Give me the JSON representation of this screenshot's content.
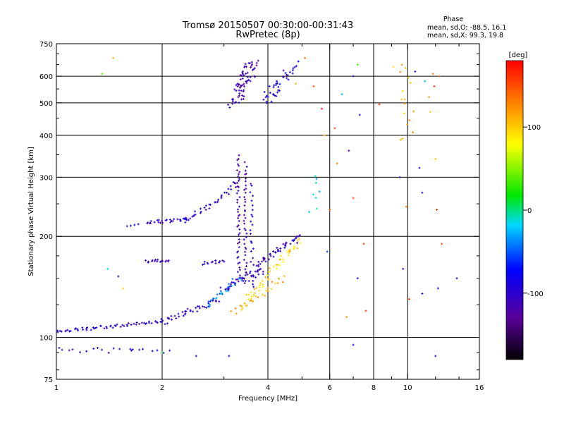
{
  "header": {
    "title_line1": "Tromsø 20150507 00:30:00-00:31:43",
    "title_line2": "RwPretec (8p)"
  },
  "stats": {
    "heading": "Phase",
    "line_o": "mean, sd,O: -88.5, 16.1",
    "line_x": "mean, sd,X:  99.3, 19.8"
  },
  "colorbar": {
    "label": "[deg]",
    "range": [
      -180,
      180
    ],
    "ticks": [
      {
        "value": 100,
        "label": "100"
      },
      {
        "value": 0,
        "label": "0"
      },
      {
        "value": -100,
        "label": "-100"
      }
    ]
  },
  "chart_data": {
    "type": "scatter",
    "title": "Tromsø 20150507 00:30:00-00:31:43",
    "subtitle": "RwPretec (8p)",
    "xlabel": "Frequency [MHz]",
    "ylabel": "Stationary phase Virtual Height [km]",
    "xscale": "log",
    "yscale": "log",
    "xlim": [
      1,
      16
    ],
    "ylim": [
      75,
      750
    ],
    "xticks": [
      {
        "value": 1,
        "label": "1"
      },
      {
        "value": 2,
        "label": "2"
      },
      {
        "value": 4,
        "label": "4"
      },
      {
        "value": 6,
        "label": "6"
      },
      {
        "value": 8,
        "label": "8"
      },
      {
        "value": 10,
        "label": "10"
      },
      {
        "value": 16,
        "label": "16"
      }
    ],
    "yticks": [
      {
        "value": 75,
        "label": "75"
      },
      {
        "value": 100,
        "label": "100"
      },
      {
        "value": 200,
        "label": "200"
      },
      {
        "value": 300,
        "label": "300"
      },
      {
        "value": 400,
        "label": "400"
      },
      {
        "value": 500,
        "label": "500"
      },
      {
        "value": 600,
        "label": "600"
      },
      {
        "value": 750,
        "label": "750"
      }
    ],
    "grid_x": [
      2,
      4,
      6,
      8,
      10
    ],
    "grid_y": [
      100,
      200,
      300,
      400,
      500,
      600
    ],
    "color_by": "phase [deg]",
    "segments": [
      {
        "f0": 1.0,
        "h0": 104,
        "f1": 1.95,
        "h1": 111,
        "n": 55,
        "phase": -100,
        "spread": 0.012
      },
      {
        "f0": 1.95,
        "h0": 110,
        "f1": 2.85,
        "h1": 128,
        "n": 40,
        "phase": -95,
        "spread": 0.02
      },
      {
        "f0": 2.7,
        "h0": 125,
        "f1": 3.35,
        "h1": 150,
        "n": 30,
        "phase": -40,
        "spread": 0.025
      },
      {
        "f0": 3.0,
        "h0": 140,
        "f1": 3.9,
        "h1": 160,
        "n": 35,
        "phase": -105,
        "spread": 0.025
      },
      {
        "f0": 3.7,
        "h0": 165,
        "f1": 4.95,
        "h1": 200,
        "n": 45,
        "phase": -110,
        "spread": 0.02
      },
      {
        "f0": 3.4,
        "h0": 125,
        "f1": 4.9,
        "h1": 195,
        "n": 50,
        "phase": 95,
        "spread": 0.025
      },
      {
        "f0": 3.2,
        "h0": 118,
        "f1": 4.4,
        "h1": 150,
        "n": 25,
        "phase": 110,
        "spread": 0.02
      },
      {
        "f0": 3.3,
        "h0": 150,
        "f1": 3.3,
        "h1": 350,
        "n": 45,
        "phase": -115,
        "spread": 0.01
      },
      {
        "f0": 3.45,
        "h0": 145,
        "f1": 3.45,
        "h1": 330,
        "n": 40,
        "phase": -120,
        "spread": 0.01
      },
      {
        "f0": 3.6,
        "h0": 140,
        "f1": 3.6,
        "h1": 290,
        "n": 25,
        "phase": -100,
        "spread": 0.012
      },
      {
        "f0": 2.9,
        "h0": 255,
        "f1": 3.3,
        "h1": 295,
        "n": 15,
        "phase": -100,
        "spread": 0.02
      },
      {
        "f0": 1.8,
        "h0": 220,
        "f1": 2.4,
        "h1": 225,
        "n": 28,
        "phase": -100,
        "spread": 0.012
      },
      {
        "f0": 2.3,
        "h0": 222,
        "f1": 2.9,
        "h1": 255,
        "n": 22,
        "phase": -100,
        "spread": 0.015
      },
      {
        "f0": 1.6,
        "h0": 215,
        "f1": 1.7,
        "h1": 216,
        "n": 4,
        "phase": -100,
        "spread": 0.01
      },
      {
        "f0": 1.8,
        "h0": 168,
        "f1": 2.1,
        "h1": 170,
        "n": 16,
        "phase": -105,
        "spread": 0.01
      },
      {
        "f0": 2.6,
        "h0": 166,
        "f1": 3.0,
        "h1": 170,
        "n": 14,
        "phase": -100,
        "spread": 0.012
      },
      {
        "f0": 1.0,
        "h0": 92,
        "f1": 2.1,
        "h1": 91,
        "n": 20,
        "phase": -100,
        "spread": 0.02
      },
      {
        "f0": 3.2,
        "h0": 500,
        "f1": 3.65,
        "h1": 660,
        "n": 70,
        "phase": -110,
        "spread": 0.04
      },
      {
        "f0": 3.9,
        "h0": 500,
        "f1": 4.7,
        "h1": 640,
        "n": 40,
        "phase": -90,
        "spread": 0.04
      },
      {
        "f0": 5.3,
        "h0": 240,
        "f1": 5.6,
        "h1": 300,
        "n": 8,
        "phase": -20,
        "spread": 0.03
      },
      {
        "f0": 10.0,
        "h0": 380,
        "f1": 10.0,
        "h1": 660,
        "n": 16,
        "phase": 110,
        "spread": 0.05
      }
    ],
    "scatter": [
      {
        "x": 1.35,
        "y": 610,
        "phase": 40
      },
      {
        "x": 1.45,
        "y": 680,
        "phase": 110
      },
      {
        "x": 1.5,
        "y": 152,
        "phase": -100
      },
      {
        "x": 1.55,
        "y": 140,
        "phase": 100
      },
      {
        "x": 1.4,
        "y": 160,
        "phase": -20
      },
      {
        "x": 1.65,
        "y": 92,
        "phase": -100
      },
      {
        "x": 2.0,
        "y": 90,
        "phase": 30
      },
      {
        "x": 2.5,
        "y": 88,
        "phase": -100
      },
      {
        "x": 3.1,
        "y": 88,
        "phase": -100
      },
      {
        "x": 4.8,
        "y": 570,
        "phase": 110
      },
      {
        "x": 5.1,
        "y": 680,
        "phase": 140
      },
      {
        "x": 5.4,
        "y": 560,
        "phase": 150
      },
      {
        "x": 5.7,
        "y": 480,
        "phase": 170
      },
      {
        "x": 5.8,
        "y": 400,
        "phase": 120
      },
      {
        "x": 6.2,
        "y": 420,
        "phase": 150
      },
      {
        "x": 6.3,
        "y": 330,
        "phase": 130
      },
      {
        "x": 6.0,
        "y": 240,
        "phase": 140
      },
      {
        "x": 5.9,
        "y": 180,
        "phase": -60
      },
      {
        "x": 6.5,
        "y": 530,
        "phase": -30
      },
      {
        "x": 6.8,
        "y": 360,
        "phase": -110
      },
      {
        "x": 7.0,
        "y": 600,
        "phase": -110
      },
      {
        "x": 7.2,
        "y": 650,
        "phase": 30
      },
      {
        "x": 7.3,
        "y": 460,
        "phase": -100
      },
      {
        "x": 7.0,
        "y": 260,
        "phase": 150
      },
      {
        "x": 7.5,
        "y": 190,
        "phase": 160
      },
      {
        "x": 7.2,
        "y": 150,
        "phase": -90
      },
      {
        "x": 7.6,
        "y": 120,
        "phase": 160
      },
      {
        "x": 6.7,
        "y": 115,
        "phase": 120
      },
      {
        "x": 7.0,
        "y": 95,
        "phase": -100
      },
      {
        "x": 8.3,
        "y": 495,
        "phase": 160
      },
      {
        "x": 9.1,
        "y": 640,
        "phase": 90
      },
      {
        "x": 9.5,
        "y": 300,
        "phase": -100
      },
      {
        "x": 9.7,
        "y": 160,
        "phase": -110
      },
      {
        "x": 9.9,
        "y": 245,
        "phase": 130
      },
      {
        "x": 10.1,
        "y": 130,
        "phase": 160
      },
      {
        "x": 10.5,
        "y": 620,
        "phase": -100
      },
      {
        "x": 10.8,
        "y": 320,
        "phase": -105
      },
      {
        "x": 11.0,
        "y": 270,
        "phase": -110
      },
      {
        "x": 11.2,
        "y": 580,
        "phase": -30
      },
      {
        "x": 11.5,
        "y": 520,
        "phase": 120
      },
      {
        "x": 11.8,
        "y": 610,
        "phase": 130
      },
      {
        "x": 11.6,
        "y": 470,
        "phase": 100
      },
      {
        "x": 12.0,
        "y": 340,
        "phase": 100
      },
      {
        "x": 12.1,
        "y": 240,
        "phase": 160
      },
      {
        "x": 12.5,
        "y": 190,
        "phase": 150
      },
      {
        "x": 12.2,
        "y": 140,
        "phase": -100
      },
      {
        "x": 11.0,
        "y": 135,
        "phase": -100
      },
      {
        "x": 12.0,
        "y": 88,
        "phase": -100
      },
      {
        "x": 13.8,
        "y": 150,
        "phase": -100
      },
      {
        "x": 12.3,
        "y": 600,
        "phase": 140
      },
      {
        "x": 11.9,
        "y": 560,
        "phase": 160
      }
    ]
  }
}
